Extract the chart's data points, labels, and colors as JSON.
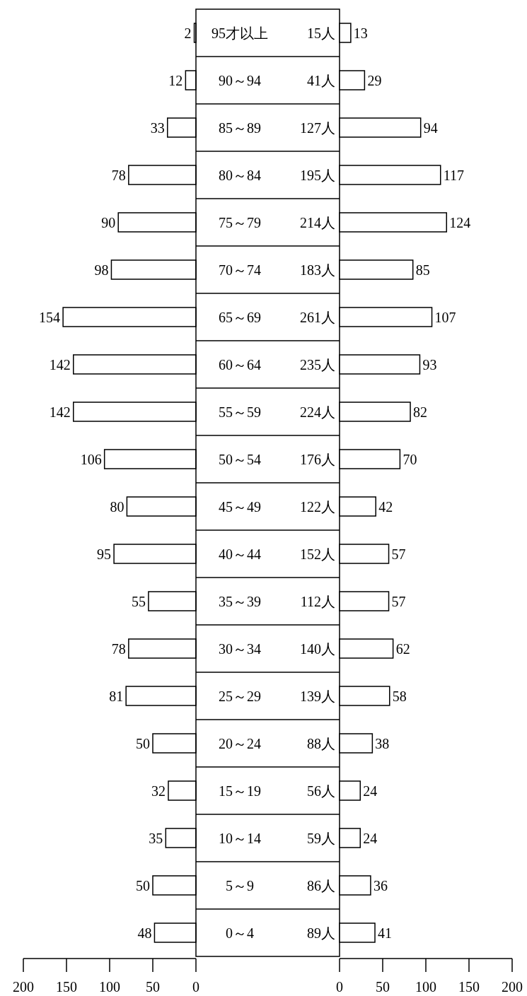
{
  "chart_data": [
    {
      "type": "bar",
      "orientation": "horizontal",
      "color": "#ffffff",
      "data_labels": true,
      "categories": [
        "95才以上",
        "90～94",
        "85～89",
        "80～84",
        "75～79",
        "70～74",
        "65～69",
        "60～64",
        "55～59",
        "50～54",
        "45～49",
        "40～44",
        "35～39",
        "30～34",
        "25～29",
        "20～24",
        "15～19",
        "10～14",
        "5～9",
        "0～4"
      ],
      "values": [
        2,
        12,
        33,
        78,
        90,
        98,
        154,
        142,
        142,
        106,
        80,
        95,
        55,
        78,
        81,
        50,
        32,
        35,
        50,
        48
      ],
      "xlim": [
        200,
        0
      ],
      "xticks": [
        200,
        150,
        100,
        50,
        0
      ]
    },
    {
      "type": "other",
      "annotations": [
        "15人",
        "41人",
        "127人",
        "195人",
        "214人",
        "183人",
        "261人",
        "235人",
        "224人",
        "176人",
        "122人",
        "152人",
        "112人",
        "140人",
        "139人",
        "88人",
        "56人",
        "59人",
        "86人",
        "89人"
      ]
    },
    {
      "type": "bar",
      "orientation": "horizontal",
      "color": "#ffffff",
      "data_labels": true,
      "tick_labels": "x",
      "categories": [
        null,
        null,
        null,
        null,
        null,
        null,
        null,
        null,
        null,
        null,
        null,
        null,
        null,
        null,
        null,
        null,
        null,
        null,
        null,
        null
      ],
      "values": [
        13,
        29,
        94,
        117,
        124,
        85,
        107,
        93,
        82,
        70,
        42,
        57,
        57,
        62,
        58,
        38,
        24,
        24,
        36,
        41
      ],
      "xlim": [
        0,
        200
      ],
      "xticks": [
        0,
        50,
        100,
        150,
        200
      ]
    }
  ]
}
